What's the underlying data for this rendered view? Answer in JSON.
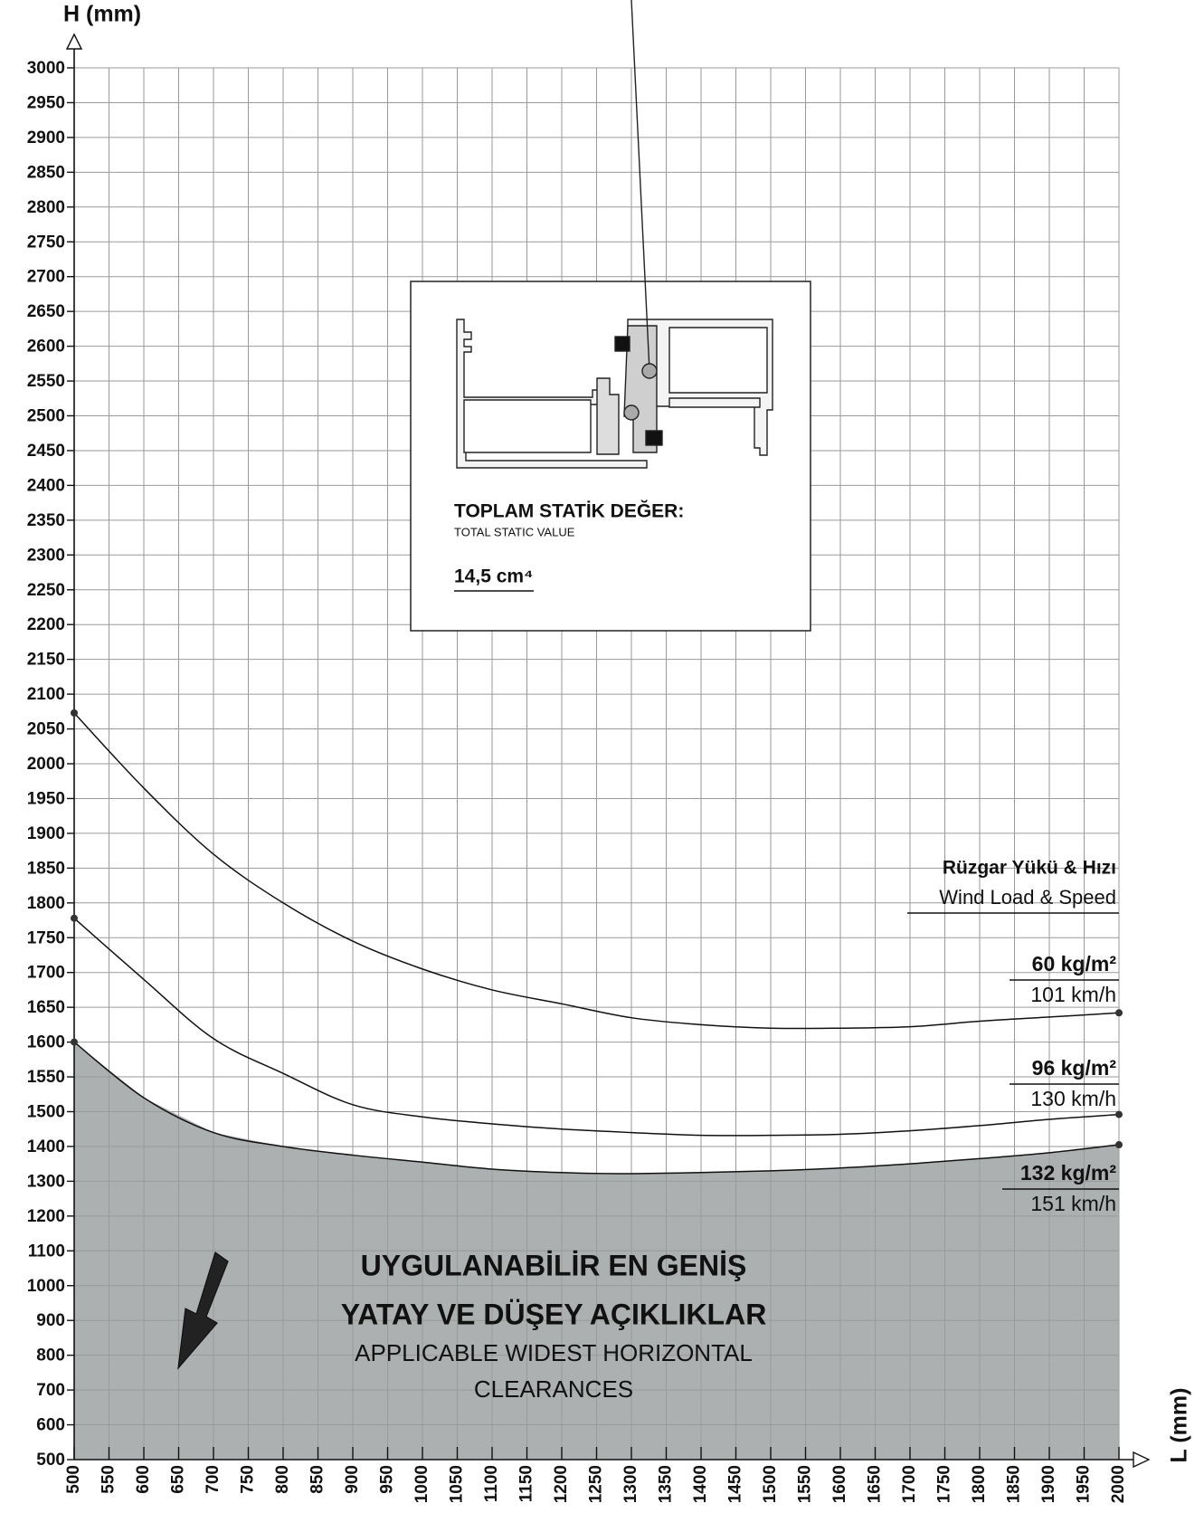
{
  "chart_data": {
    "type": "area-line",
    "y_axis_label": "H (mm)",
    "x_axis_label": "L (mm)",
    "x": [
      500,
      600,
      700,
      800,
      900,
      1000,
      1100,
      1200,
      1300,
      1400,
      1500,
      1600,
      1700,
      1800,
      1900,
      2000
    ],
    "series": [
      {
        "name": "60 kg/m²",
        "speed": "101 km/h",
        "color": "#111111",
        "values": [
          2073,
          1965,
          1870,
          1800,
          1745,
          1705,
          1675,
          1655,
          1635,
          1625,
          1620,
          1620,
          1622,
          1630,
          1636,
          1642
        ]
      },
      {
        "name": "96 kg/m²",
        "speed": "130 km/h",
        "color": "#111111",
        "values": [
          1778,
          1690,
          1605,
          1555,
          1510,
          1485,
          1465,
          1450,
          1440,
          1432,
          1432,
          1435,
          1445,
          1460,
          1478,
          1492
        ]
      },
      {
        "name": "132 kg/m²",
        "speed": "151 km/h",
        "color": "#111111",
        "fill": "#adb0b0",
        "values": [
          1600,
          1520,
          1440,
          1400,
          1375,
          1355,
          1335,
          1325,
          1322,
          1325,
          1330,
          1338,
          1350,
          1365,
          1382,
          1405
        ]
      }
    ],
    "xlim": [
      500,
      2000
    ],
    "ylim": [
      500,
      3000
    ],
    "xticks": [
      500,
      550,
      600,
      650,
      700,
      750,
      800,
      850,
      900,
      950,
      1000,
      1050,
      1100,
      1150,
      1200,
      1250,
      1300,
      1350,
      1400,
      1450,
      1500,
      1550,
      1600,
      1650,
      1700,
      1750,
      1800,
      1850,
      1900,
      1950,
      2000
    ],
    "yticks": [
      500,
      600,
      700,
      800,
      900,
      1000,
      1100,
      1200,
      1300,
      1400,
      1500,
      1550,
      1600,
      1650,
      1700,
      1750,
      1800,
      1850,
      1900,
      1950,
      2000,
      2050,
      2100,
      2150,
      2200,
      2250,
      2300,
      2350,
      2400,
      2450,
      2500,
      2550,
      2600,
      2650,
      2700,
      2750,
      2800,
      2850,
      2900,
      2950,
      3000
    ],
    "grid": true,
    "legend_title": "Rüzgar Yükü & Hızı",
    "legend_subtitle": "Wind Load & Speed",
    "inset": {
      "title": "TOPLAM STATİK DEĞER:",
      "subtitle": "TOTAL STATIC VALUE",
      "value": "14,5 cm⁴"
    },
    "annotation": [
      "UYGULANABİLİR EN GENİŞ",
      "YATAY VE DÜŞEY AÇIKLIKLAR",
      "APPLICABLE WIDEST HORIZONTAL",
      "CLEARANCES"
    ]
  }
}
